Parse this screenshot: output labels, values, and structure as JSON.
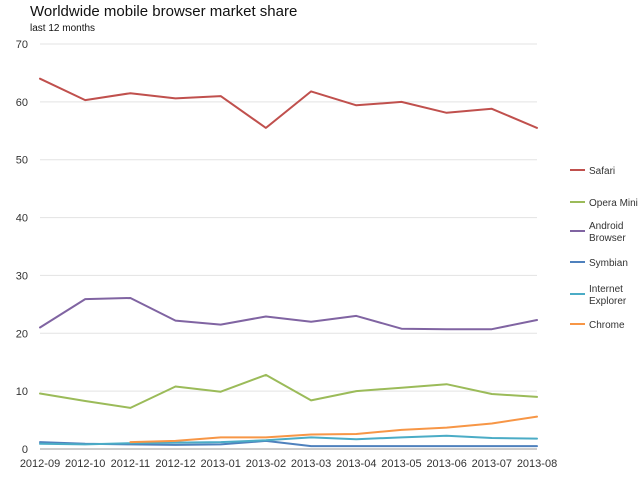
{
  "chart_data": {
    "type": "line",
    "title": "Worldwide mobile browser market share",
    "subtitle": "last 12 months",
    "x": [
      "2012-09",
      "2012-10",
      "2012-11",
      "2012-12",
      "2013-01",
      "2013-02",
      "2013-03",
      "2013-04",
      "2013-05",
      "2013-06",
      "2013-07",
      "2013-08"
    ],
    "ylim": [
      0,
      70
    ],
    "yticks": [
      "0",
      "10",
      "20",
      "30",
      "40",
      "50",
      "60",
      "70"
    ],
    "grid": true,
    "legend_position": "right",
    "series": [
      {
        "name": "Safari",
        "color": "#c0504d",
        "values": [
          64.0,
          60.3,
          61.5,
          60.6,
          61.0,
          55.5,
          61.8,
          59.4,
          60.0,
          58.1,
          58.8,
          55.5
        ]
      },
      {
        "name": "Opera Mini",
        "color": "#9bbb59",
        "values": [
          9.6,
          8.3,
          7.1,
          10.8,
          9.9,
          12.8,
          8.4,
          10.0,
          10.6,
          11.2,
          9.5,
          9.0
        ]
      },
      {
        "name": "Android Browser",
        "color": "#8064a2",
        "values": [
          21.0,
          25.9,
          26.1,
          22.2,
          21.5,
          22.9,
          22.0,
          23.0,
          20.8,
          20.7,
          20.7,
          22.3
        ]
      },
      {
        "name": "Symbian",
        "color": "#4f81bd",
        "values": [
          1.2,
          0.9,
          0.8,
          0.7,
          0.8,
          1.4,
          0.5,
          0.5,
          0.5,
          0.5,
          0.5,
          0.5
        ]
      },
      {
        "name": "Internet Explorer",
        "color": "#4bacc6",
        "values": [
          0.9,
          0.8,
          1.0,
          1.1,
          1.2,
          1.5,
          2.0,
          1.7,
          2.0,
          2.3,
          1.9,
          1.8
        ]
      },
      {
        "name": "Chrome",
        "color": "#f79646",
        "values": [
          null,
          null,
          1.2,
          1.4,
          2.0,
          2.0,
          2.5,
          2.6,
          3.3,
          3.7,
          4.4,
          5.6
        ]
      }
    ]
  }
}
